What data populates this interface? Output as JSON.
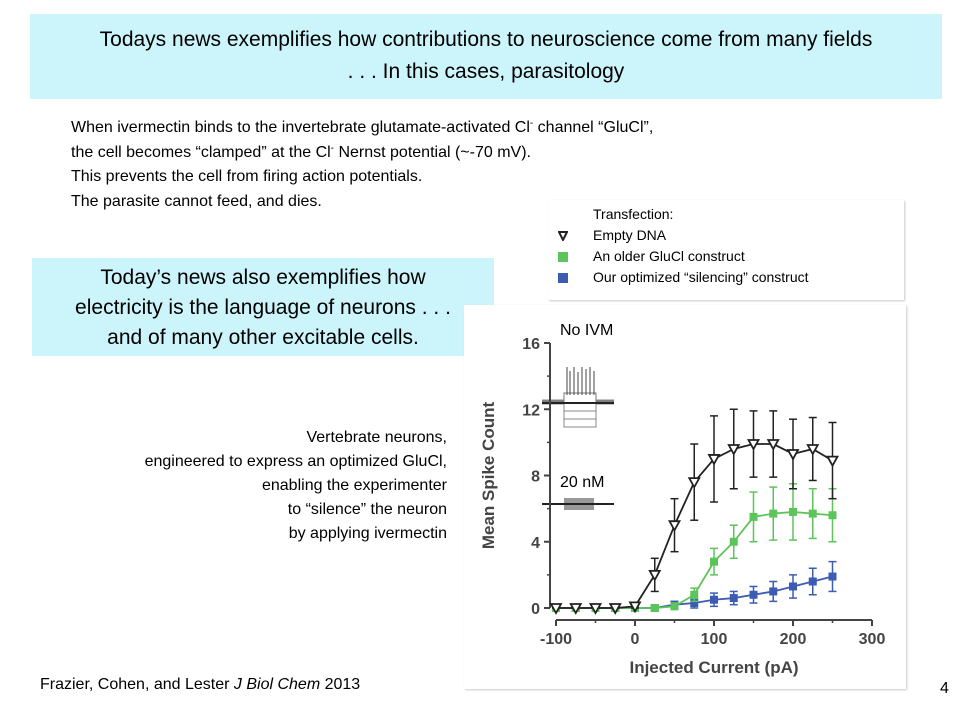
{
  "title_box": {
    "line1": "Todays news exemplifies how contributions to neuroscience come from many fields",
    "line2": ". . . In this cases, parasitology"
  },
  "body": {
    "line1_a": "When ivermectin binds to the invertebrate glutamate-activated Cl",
    "line1_sup": "-",
    "line1_b": " channel “GluCl”,",
    "line2_a": "the cell becomes “clamped” at the Cl",
    "line2_sup": "-",
    "line2_b": " Nernst potential (~-70 mV).",
    "line3": "This prevents the cell from firing action potentials.",
    "line4": "The parasite cannot feed, and dies."
  },
  "news_box": {
    "line1": "Today’s news also exemplifies how",
    "line2": "electricity is the language of neurons . . .",
    "line3": "and of many other excitable cells."
  },
  "legend": {
    "title": "Transfection:",
    "items": [
      {
        "label": "Empty DNA",
        "marker": "open-triangle-down",
        "color": "#222222"
      },
      {
        "label": "An older GluCl construct",
        "marker": "square",
        "color": "#5cc45a"
      },
      {
        "label": "Our optimized “silencing” construct",
        "marker": "square",
        "color": "#3c5cb4"
      }
    ]
  },
  "vertebrate_text": {
    "line1": "Vertebrate neurons,",
    "line2": "engineered to express an optimized GluCl,",
    "line3": "enabling the experimenter",
    "line4": "to “silence” the neuron",
    "line5": "by applying ivermectin"
  },
  "inset_labels": {
    "no_ivm": "No IVM",
    "nm20": "20 nM"
  },
  "citation": {
    "authors": "Frazier, Cohen, and Lester ",
    "journal": "J Biol Chem",
    "year": " 2013"
  },
  "page_number": "4",
  "chart_data": {
    "type": "line",
    "xlabel": "Injected Current (pA)",
    "ylabel": "Mean Spike Count",
    "xlim": [
      -100,
      300
    ],
    "ylim": [
      0,
      16
    ],
    "xticks": [
      -100,
      0,
      100,
      200,
      300
    ],
    "yticks": [
      0,
      4,
      8,
      12,
      16
    ],
    "x": [
      -100,
      -75,
      -50,
      -25,
      0,
      25,
      50,
      75,
      100,
      125,
      150,
      175,
      200,
      225,
      250
    ],
    "series": [
      {
        "name": "Empty DNA",
        "color": "#222222",
        "marker": "open-triangle-down",
        "values": [
          0,
          0,
          0,
          0,
          0.1,
          2,
          5,
          7.6,
          9,
          9.6,
          9.9,
          9.9,
          9.3,
          9.6,
          8.9
        ],
        "errors": [
          0.1,
          0.1,
          0.1,
          0.1,
          0.2,
          1.0,
          1.6,
          2.3,
          2.6,
          2.4,
          2.0,
          2.0,
          2.1,
          1.9,
          2.3
        ]
      },
      {
        "name": "An older GluCl construct",
        "color": "#5cc45a",
        "marker": "square",
        "values": [
          0,
          0,
          0,
          0,
          0,
          0,
          0.1,
          0.8,
          2.8,
          4.0,
          5.5,
          5.7,
          5.8,
          5.7,
          5.6
        ],
        "errors": [
          0.1,
          0.1,
          0.1,
          0.1,
          0.1,
          0.1,
          0.2,
          0.4,
          0.8,
          1.0,
          1.5,
          1.6,
          1.7,
          1.5,
          1.6
        ]
      },
      {
        "name": "Our optimized “silencing” construct",
        "color": "#3c5cb4",
        "marker": "square",
        "values": [
          0,
          0,
          0,
          0,
          0,
          0,
          0.2,
          0.3,
          0.5,
          0.6,
          0.8,
          1.0,
          1.3,
          1.6,
          1.9
        ],
        "errors": [
          0.1,
          0.1,
          0.1,
          0.1,
          0.1,
          0.1,
          0.2,
          0.3,
          0.4,
          0.4,
          0.5,
          0.6,
          0.7,
          0.8,
          0.9
        ]
      }
    ]
  }
}
